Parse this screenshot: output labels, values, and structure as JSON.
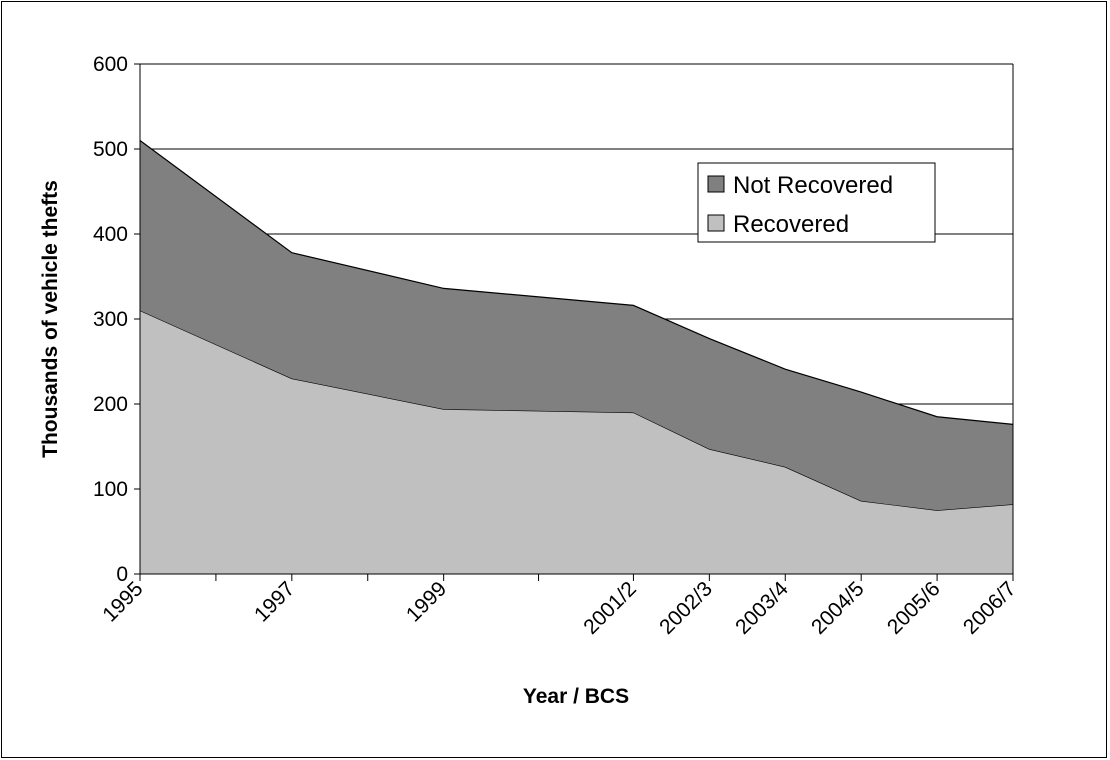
{
  "chart_data": {
    "type": "area",
    "stacked": true,
    "title": "",
    "xlabel": "Year / BCS",
    "ylabel": "Thousands of vehicle thefts",
    "ylim": [
      0,
      600
    ],
    "yticks": [
      0,
      100,
      200,
      300,
      400,
      500,
      600
    ],
    "grid": "horizontal",
    "legend_position": "top-right",
    "x": [
      1995,
      1997,
      1999,
      2001.5,
      2002.5,
      2003.5,
      2004.5,
      2005.5,
      2006.5
    ],
    "categories": [
      "1995",
      "1997",
      "1999",
      "2001/2",
      "2002/3",
      "2003/4",
      "2004/5",
      "2005/6",
      "2006/7"
    ],
    "series": [
      {
        "name": "Recovered",
        "color": "#c0c0c0",
        "values": [
          310,
          230,
          194,
          190,
          147,
          126,
          86,
          75,
          82
        ]
      },
      {
        "name": "Not Recovered",
        "color": "#808080",
        "values": [
          200,
          148,
          142,
          126,
          130,
          115,
          128,
          110,
          94
        ]
      }
    ],
    "totals": [
      510,
      378,
      336,
      316,
      277,
      241,
      214,
      185,
      176
    ],
    "legend_order": [
      "Not Recovered",
      "Recovered"
    ]
  }
}
